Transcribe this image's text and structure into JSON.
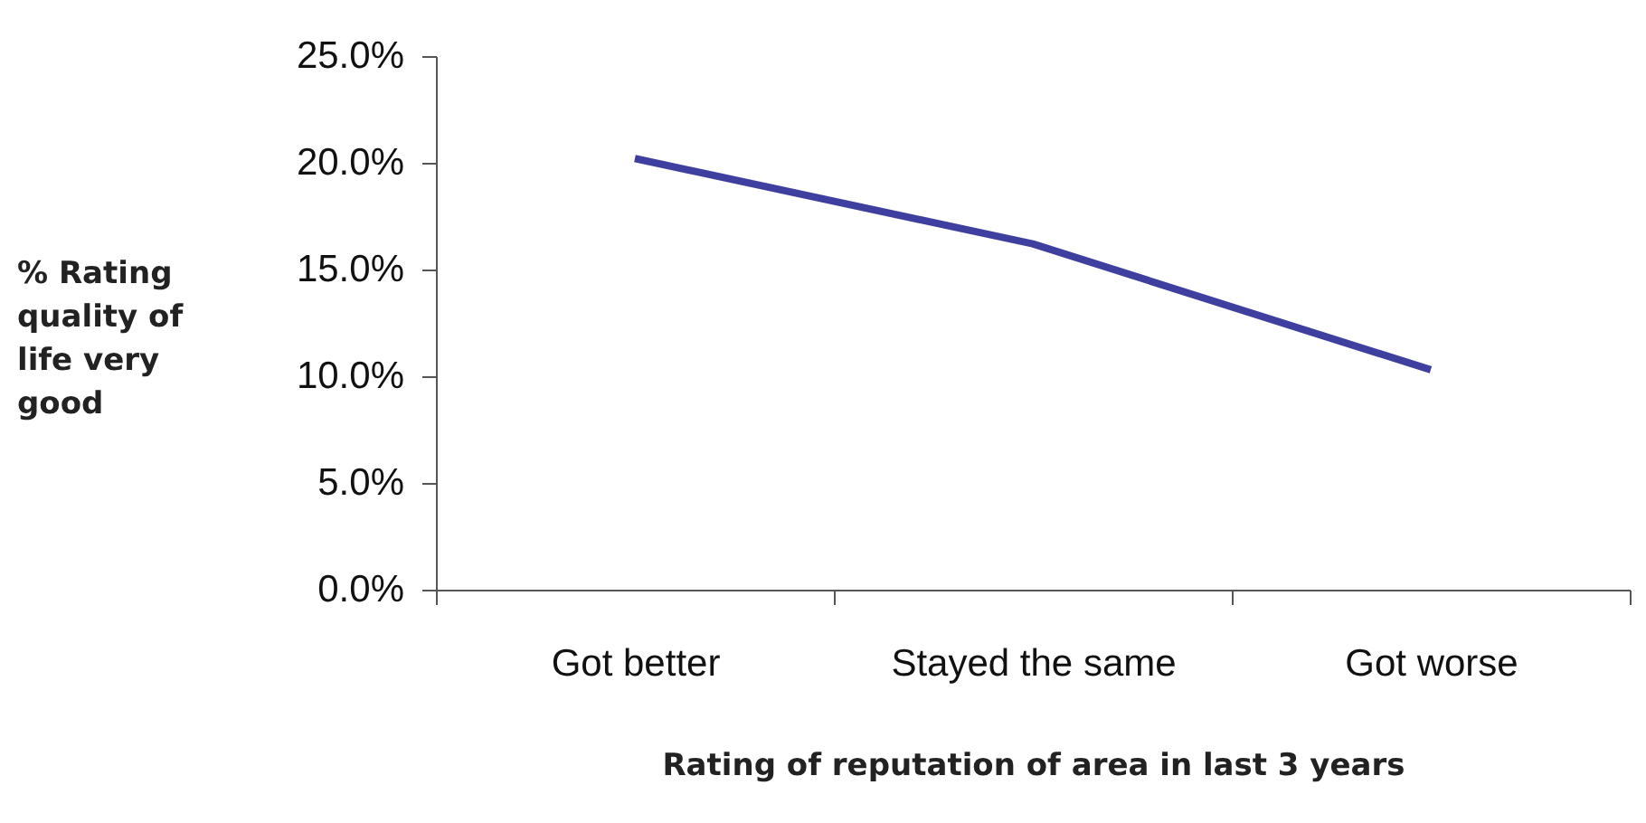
{
  "chart_data": {
    "type": "line",
    "xlabel": "Rating of reputation of area in last 3 years",
    "ylabel": "% Rating quality of life very good",
    "categories": [
      "Got better",
      "Stayed the same",
      "Got worse"
    ],
    "series": [
      {
        "color": "#3f3f9f",
        "values": [
          20.2,
          16.2,
          10.3
        ]
      }
    ],
    "ylim": [
      0,
      25
    ],
    "yticks": [
      {
        "value": 0,
        "label": "0.0%"
      },
      {
        "value": 5,
        "label": "5.0%"
      },
      {
        "value": 10,
        "label": "10.0%"
      },
      {
        "value": 15,
        "label": "15.0%"
      },
      {
        "value": 20,
        "label": "20.0%"
      },
      {
        "value": 25,
        "label": "25.0%"
      }
    ],
    "grid": false,
    "marker": "none",
    "line_style": "solid"
  }
}
